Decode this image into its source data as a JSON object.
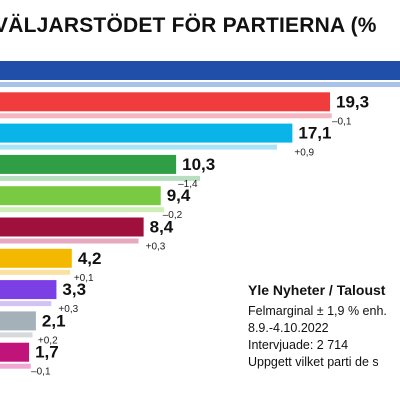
{
  "chart_data": {
    "type": "bar",
    "title": "VÄLJARSTÖDET FÖR PARTIERNA (%",
    "orientation": "horizontal",
    "series": [
      {
        "values": [
          null,
          19.3,
          17.1,
          10.3,
          9.4,
          8.4,
          4.2,
          3.3,
          2.1,
          1.7
        ],
        "value_labels": [
          "",
          "19,3",
          "17,1",
          "10,3",
          "9,4",
          "8,4",
          "4,2",
          "3,3",
          "2,1",
          "1,7"
        ],
        "changes": [
          "",
          "–0,1",
          "+0,9",
          "–1,4",
          "–0,2",
          "+0,3",
          "+0,1",
          "+0,3",
          "+0,2",
          "–0,1"
        ],
        "colors": [
          "#1f4fa8",
          "#f03c3c",
          "#08b4e8",
          "#2f9e44",
          "#7ac943",
          "#a0103c",
          "#f5b800",
          "#7b3fe4",
          "#a5b1b8",
          "#c0147a"
        ],
        "previous_colors": [
          "#a9c2ea",
          "#f5b6c0",
          "#a9e3f5",
          "#b7dfbf",
          "#cdeeb4",
          "#e6a9c0",
          "#f9e1a0",
          "#d3c2f5",
          "#d5dadd",
          "#f0a8d3"
        ]
      }
    ],
    "xlim": [
      0,
      21.5
    ],
    "grid": false,
    "legend": "none"
  },
  "source": {
    "title": "Yle Nyheter / Taloust",
    "lines": [
      "Felmarginal ± 1,9 % enh.",
      "8.9.-4.10.2022",
      "Intervjuade: 2 714",
      "Uppgett vilket parti de s"
    ]
  }
}
